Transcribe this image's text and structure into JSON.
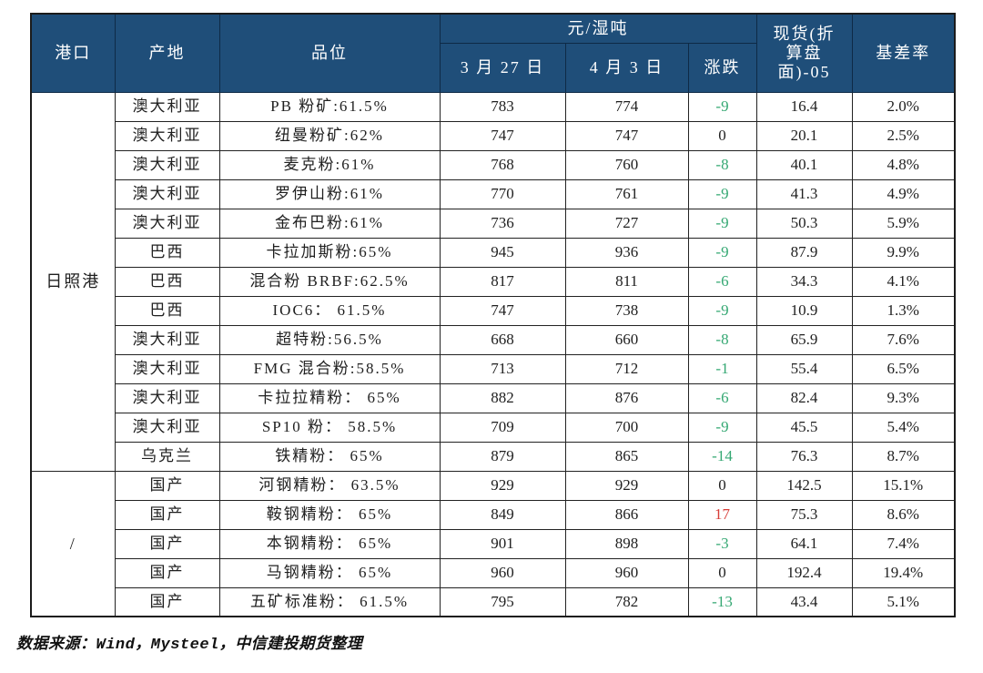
{
  "chart_data": {
    "type": "table",
    "columns": {
      "port": "港口",
      "origin": "产地",
      "grade": "品位",
      "unit_group": "元/湿吨",
      "date1": "3 月 27 日",
      "date2": "4 月 3 日",
      "change": "涨跌",
      "spot_lines": [
        "现货(折",
        "算盘",
        "面)-05"
      ],
      "basis": "基差率"
    },
    "sections": [
      {
        "port": "日照港",
        "rows": [
          {
            "origin": "澳大利亚",
            "grade": "PB 粉矿:61.5%",
            "p0327": "783",
            "p0403": "774",
            "change": "-9",
            "dir": "down",
            "spot": "16.4",
            "basis": "2.0%"
          },
          {
            "origin": "澳大利亚",
            "grade": "纽曼粉矿:62%",
            "p0327": "747",
            "p0403": "747",
            "change": "0",
            "dir": "flat",
            "spot": "20.1",
            "basis": "2.5%"
          },
          {
            "origin": "澳大利亚",
            "grade": "麦克粉:61%",
            "p0327": "768",
            "p0403": "760",
            "change": "-8",
            "dir": "down",
            "spot": "40.1",
            "basis": "4.8%"
          },
          {
            "origin": "澳大利亚",
            "grade": "罗伊山粉:61%",
            "p0327": "770",
            "p0403": "761",
            "change": "-9",
            "dir": "down",
            "spot": "41.3",
            "basis": "4.9%"
          },
          {
            "origin": "澳大利亚",
            "grade": "金布巴粉:61%",
            "p0327": "736",
            "p0403": "727",
            "change": "-9",
            "dir": "down",
            "spot": "50.3",
            "basis": "5.9%"
          },
          {
            "origin": "巴西",
            "grade": "卡拉加斯粉:65%",
            "p0327": "945",
            "p0403": "936",
            "change": "-9",
            "dir": "down",
            "spot": "87.9",
            "basis": "9.9%"
          },
          {
            "origin": "巴西",
            "grade": "混合粉 BRBF:62.5%",
            "p0327": "817",
            "p0403": "811",
            "change": "-6",
            "dir": "down",
            "spot": "34.3",
            "basis": "4.1%"
          },
          {
            "origin": "巴西",
            "grade": "IOC6： 61.5%",
            "p0327": "747",
            "p0403": "738",
            "change": "-9",
            "dir": "down",
            "spot": "10.9",
            "basis": "1.3%"
          },
          {
            "origin": "澳大利亚",
            "grade": "超特粉:56.5%",
            "p0327": "668",
            "p0403": "660",
            "change": "-8",
            "dir": "down",
            "spot": "65.9",
            "basis": "7.6%"
          },
          {
            "origin": "澳大利亚",
            "grade": "FMG 混合粉:58.5%",
            "p0327": "713",
            "p0403": "712",
            "change": "-1",
            "dir": "down",
            "spot": "55.4",
            "basis": "6.5%"
          },
          {
            "origin": "澳大利亚",
            "grade": "卡拉拉精粉： 65%",
            "p0327": "882",
            "p0403": "876",
            "change": "-6",
            "dir": "down",
            "spot": "82.4",
            "basis": "9.3%"
          },
          {
            "origin": "澳大利亚",
            "grade": "SP10 粉： 58.5%",
            "p0327": "709",
            "p0403": "700",
            "change": "-9",
            "dir": "down",
            "spot": "45.5",
            "basis": "5.4%"
          },
          {
            "origin": "乌克兰",
            "grade": "铁精粉： 65%",
            "p0327": "879",
            "p0403": "865",
            "change": "-14",
            "dir": "down",
            "spot": "76.3",
            "basis": "8.7%"
          }
        ]
      },
      {
        "port": "/",
        "rows": [
          {
            "origin": "国产",
            "grade": "河钢精粉： 63.5%",
            "p0327": "929",
            "p0403": "929",
            "change": "0",
            "dir": "flat",
            "spot": "142.5",
            "basis": "15.1%"
          },
          {
            "origin": "国产",
            "grade": "鞍钢精粉： 65%",
            "p0327": "849",
            "p0403": "866",
            "change": "17",
            "dir": "up",
            "spot": "75.3",
            "basis": "8.6%"
          },
          {
            "origin": "国产",
            "grade": "本钢精粉： 65%",
            "p0327": "901",
            "p0403": "898",
            "change": "-3",
            "dir": "down",
            "spot": "64.1",
            "basis": "7.4%"
          },
          {
            "origin": "国产",
            "grade": "马钢精粉： 65%",
            "p0327": "960",
            "p0403": "960",
            "change": "0",
            "dir": "flat",
            "spot": "192.4",
            "basis": "19.4%"
          },
          {
            "origin": "国产",
            "grade": "五矿标准粉： 61.5%",
            "p0327": "795",
            "p0403": "782",
            "change": "-13",
            "dir": "down",
            "spot": "43.4",
            "basis": "5.1%"
          }
        ]
      }
    ]
  },
  "footer": {
    "source_note": "数据来源：Wind，Mysteel，中信建投期货整理"
  },
  "colors": {
    "header_bg": "#1F4E79",
    "down_green": "#35A873",
    "up_red": "#D73C37",
    "body_text": "#1F1F1F"
  }
}
